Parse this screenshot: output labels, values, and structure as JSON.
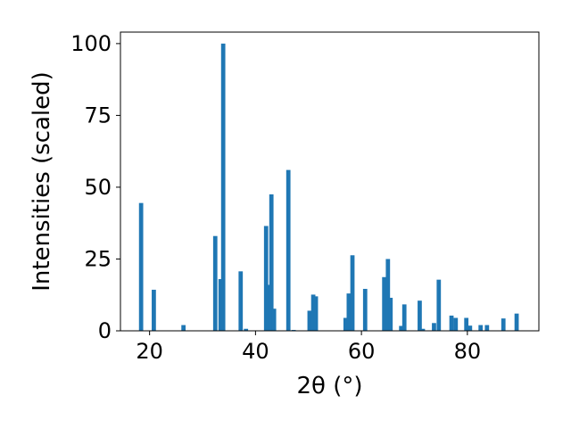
{
  "chart_data": {
    "type": "bar",
    "xlabel": "2θ (°)",
    "ylabel": "Intensities (scaled)",
    "xlim": [
      14.5,
      93.5
    ],
    "ylim": [
      0,
      104
    ],
    "xticks": [
      20,
      40,
      60,
      80
    ],
    "yticks": [
      0,
      25,
      50,
      75,
      100
    ],
    "bar_width": 0.8,
    "color": "#1f77b4",
    "points": [
      {
        "x": 18.4,
        "y": 44.5
      },
      {
        "x": 20.8,
        "y": 14.3
      },
      {
        "x": 26.4,
        "y": 2.0
      },
      {
        "x": 32.4,
        "y": 33.0
      },
      {
        "x": 33.4,
        "y": 18.0
      },
      {
        "x": 33.9,
        "y": 100.0
      },
      {
        "x": 37.2,
        "y": 20.7
      },
      {
        "x": 38.2,
        "y": 0.7
      },
      {
        "x": 42.0,
        "y": 36.5
      },
      {
        "x": 42.5,
        "y": 16.0
      },
      {
        "x": 43.0,
        "y": 47.5
      },
      {
        "x": 43.5,
        "y": 7.7
      },
      {
        "x": 46.2,
        "y": 56.0
      },
      {
        "x": 47.2,
        "y": 0.3
      },
      {
        "x": 50.2,
        "y": 7.0
      },
      {
        "x": 50.9,
        "y": 12.6
      },
      {
        "x": 51.4,
        "y": 12.0
      },
      {
        "x": 57.0,
        "y": 4.5
      },
      {
        "x": 57.6,
        "y": 13.0
      },
      {
        "x": 58.3,
        "y": 26.3
      },
      {
        "x": 60.7,
        "y": 14.6
      },
      {
        "x": 64.3,
        "y": 18.7
      },
      {
        "x": 65.0,
        "y": 25.0
      },
      {
        "x": 65.5,
        "y": 11.5
      },
      {
        "x": 67.5,
        "y": 1.7
      },
      {
        "x": 68.1,
        "y": 9.2
      },
      {
        "x": 71.0,
        "y": 10.5
      },
      {
        "x": 71.6,
        "y": 0.7
      },
      {
        "x": 73.7,
        "y": 2.7
      },
      {
        "x": 74.6,
        "y": 17.8
      },
      {
        "x": 77.0,
        "y": 5.3
      },
      {
        "x": 77.8,
        "y": 4.5
      },
      {
        "x": 79.8,
        "y": 4.5
      },
      {
        "x": 80.5,
        "y": 1.8
      },
      {
        "x": 82.5,
        "y": 2.0
      },
      {
        "x": 83.7,
        "y": 2.0
      },
      {
        "x": 86.8,
        "y": 4.3
      },
      {
        "x": 89.3,
        "y": 6.0
      }
    ]
  }
}
